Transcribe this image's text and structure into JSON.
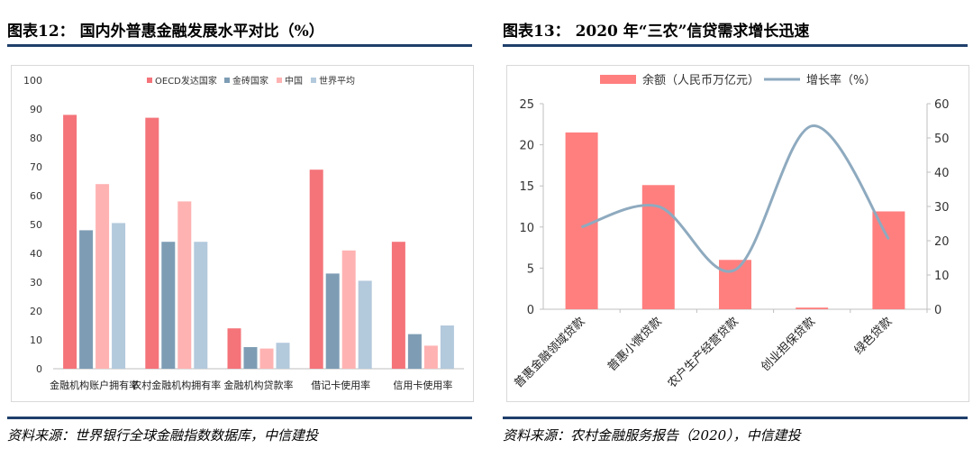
{
  "left": {
    "title": "图表12： 国内外普惠金融发展水平对比（%）",
    "source": "资料来源：世界银行全球金融指数数据库，中信建投"
  },
  "right": {
    "title": "图表13： 2020 年“三农”信贷需求增长迅速",
    "source": "资料来源：农村金融服务报告（2020），中信建投"
  },
  "chart_data": [
    {
      "type": "bar",
      "title": "国内外普惠金融发展水平对比（%）",
      "categories": [
        "金融机构账户拥有率",
        "农村金融机构拥有率",
        "金融机构贷款率",
        "借记卡使用率",
        "信用卡使用率"
      ],
      "series": [
        {
          "name": "OECD发达国家",
          "color": "#f4747a",
          "values": [
            88,
            87,
            14,
            69,
            44
          ]
        },
        {
          "name": "金砖国家",
          "color": "#7e9db5",
          "values": [
            48,
            44,
            7.5,
            33,
            12
          ]
        },
        {
          "name": "中国",
          "color": "#ffb2b2",
          "values": [
            64,
            58,
            7,
            41,
            8
          ]
        },
        {
          "name": "世界平均",
          "color": "#b3c9dc",
          "values": [
            50.5,
            44,
            9,
            30.5,
            15
          ]
        }
      ],
      "ylim": [
        0,
        100
      ],
      "yticks": [
        0,
        10,
        20,
        30,
        40,
        50,
        60,
        70,
        80,
        90,
        100
      ],
      "legend_position": "top-right",
      "grid": false
    },
    {
      "type": "bar+line",
      "title": "2020 年“三农”信贷需求增长迅速",
      "categories": [
        "普惠金融领域贷款",
        "普惠小微贷款",
        "农户生产经营贷款",
        "创业担保贷款",
        "绿色贷款"
      ],
      "series": [
        {
          "name": "余额（人民币万亿元）",
          "type": "bar",
          "axis": "left",
          "color": "#ff7f7f",
          "values": [
            21.5,
            15.1,
            6,
            0.2,
            11.9
          ]
        },
        {
          "name": "增长率（%）",
          "type": "line",
          "axis": "right",
          "color": "#8eaabf",
          "values": [
            24,
            30,
            11.5,
            53.5,
            20.5
          ]
        }
      ],
      "ylim_left": [
        0,
        25
      ],
      "yticks_left": [
        0,
        5,
        10,
        15,
        20,
        25
      ],
      "ylim_right": [
        0,
        60
      ],
      "yticks_right": [
        0,
        10,
        20,
        30,
        40,
        50,
        60
      ],
      "legend_position": "top",
      "grid": false
    }
  ]
}
